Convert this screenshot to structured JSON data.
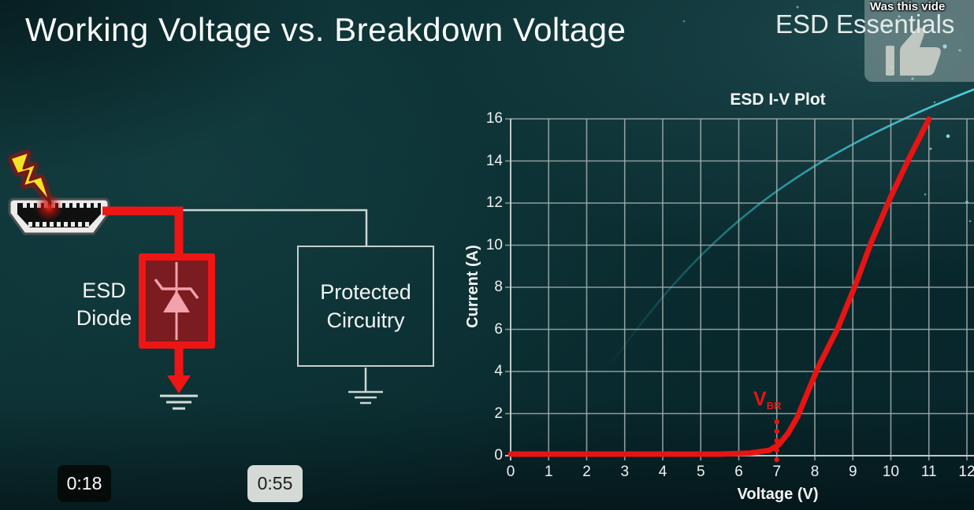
{
  "page": {
    "title": "Working Voltage vs. Breakdown Voltage",
    "brand": "ESD Essentials"
  },
  "like_popup": {
    "question": "Was this vide",
    "icon": "thumbs-up-icon"
  },
  "player": {
    "timestamp_current": "0:18",
    "timestamp_preview": "0:55"
  },
  "circuit": {
    "esd_diode_label_line1": "ESD",
    "esd_diode_label_line2": "Diode",
    "protected_label_line1": "Protected",
    "protected_label_line2": "Circuitry",
    "colors": {
      "wire_red": "#ee1515",
      "wire_gray": "#ccd6d4",
      "diode_box_fill": "#7a1c20",
      "diode_symbol": "#f2a2aa",
      "bolt_yellow": "#f0e428",
      "bolt_glow": "#8a1212"
    }
  },
  "chart_data": {
    "type": "line",
    "title": "ESD I-V Plot",
    "xlabel": "Voltage (V)",
    "ylabel": "Current (A)",
    "xlim": [
      0,
      12
    ],
    "ylim": [
      0,
      16
    ],
    "x_ticks": [
      0,
      1,
      2,
      3,
      4,
      5,
      6,
      7,
      8,
      9,
      10,
      11,
      12
    ],
    "y_ticks": [
      0,
      2,
      4,
      6,
      8,
      10,
      12,
      14,
      16
    ],
    "grid": true,
    "legend": "none",
    "series": [
      {
        "name": "ESD diode I-V curve",
        "color": "#e81414",
        "points": [
          [
            0,
            0
          ],
          [
            5.5,
            0
          ],
          [
            6.3,
            0.05
          ],
          [
            6.8,
            0.18
          ],
          [
            7.05,
            0.45
          ],
          [
            7.3,
            1.0
          ],
          [
            7.55,
            1.8
          ],
          [
            7.8,
            2.9
          ],
          [
            8.1,
            4.2
          ],
          [
            8.6,
            6.0
          ],
          [
            9.05,
            8.0
          ],
          [
            9.5,
            10.2
          ],
          [
            10.0,
            12.3
          ],
          [
            10.5,
            14.2
          ],
          [
            11.0,
            16.0
          ]
        ]
      }
    ],
    "annotations": [
      {
        "label": "V",
        "subscript": "BR",
        "x": 7,
        "marker": "dotted-vertical-line",
        "color": "#e81414"
      }
    ]
  }
}
